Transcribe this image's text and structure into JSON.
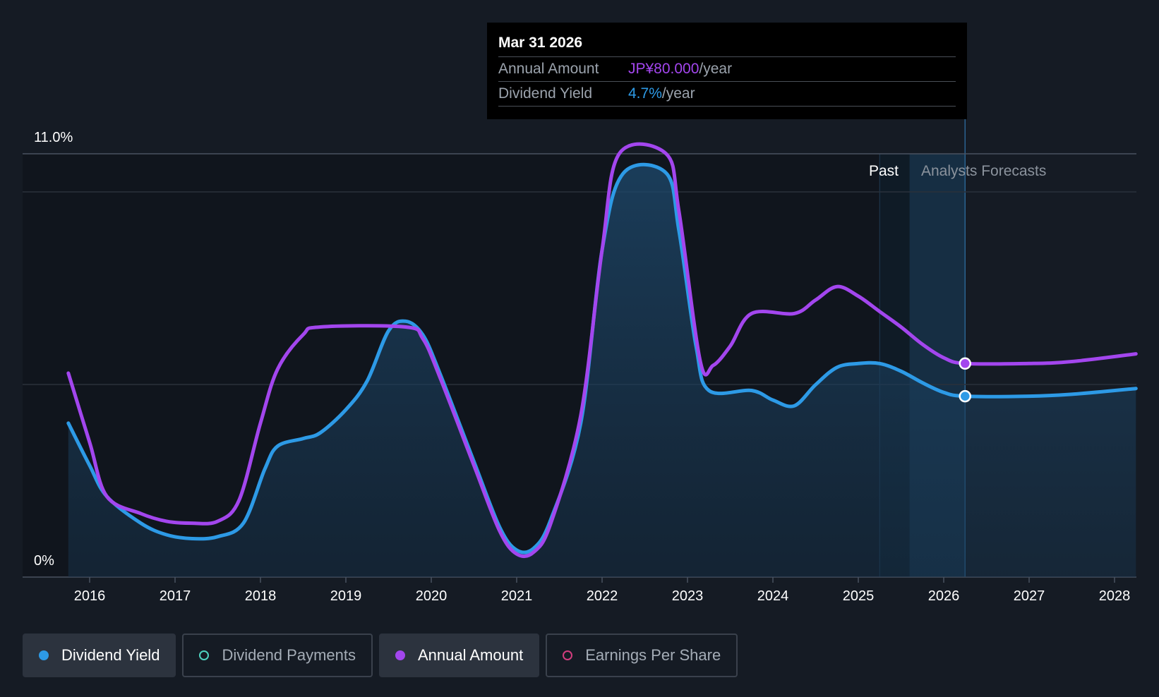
{
  "chart_data": {
    "type": "line",
    "y_axis_labels": {
      "top": "11.0%",
      "bottom": "0%"
    },
    "ylim": [
      0,
      11
    ],
    "x_tick_labels": [
      "2016",
      "2017",
      "2018",
      "2019",
      "2020",
      "2021",
      "2022",
      "2023",
      "2024",
      "2025",
      "2026",
      "2027",
      "2028"
    ],
    "regions": {
      "past": "Past",
      "forecast": "Analysts Forecasts"
    },
    "series": [
      {
        "name": "Dividend Yield",
        "unit": "%",
        "color": "#2d9ae6",
        "filled": true,
        "points": [
          [
            2015.75,
            4.0
          ],
          [
            2016.0,
            2.9
          ],
          [
            2016.2,
            2.1
          ],
          [
            2016.6,
            1.4
          ],
          [
            2016.9,
            1.1
          ],
          [
            2017.2,
            1.0
          ],
          [
            2017.5,
            1.05
          ],
          [
            2017.8,
            1.4
          ],
          [
            2018.05,
            2.8
          ],
          [
            2018.2,
            3.4
          ],
          [
            2018.5,
            3.6
          ],
          [
            2018.7,
            3.75
          ],
          [
            2019.0,
            4.35
          ],
          [
            2019.25,
            5.1
          ],
          [
            2019.5,
            6.4
          ],
          [
            2019.7,
            6.65
          ],
          [
            2019.9,
            6.3
          ],
          [
            2020.1,
            5.3
          ],
          [
            2020.5,
            3.0
          ],
          [
            2020.8,
            1.3
          ],
          [
            2021.0,
            0.7
          ],
          [
            2021.2,
            0.75
          ],
          [
            2021.4,
            1.5
          ],
          [
            2021.75,
            4.0
          ],
          [
            2022.0,
            8.5
          ],
          [
            2022.25,
            10.5
          ],
          [
            2022.75,
            10.5
          ],
          [
            2022.9,
            9.0
          ],
          [
            2023.1,
            6.0
          ],
          [
            2023.25,
            4.85
          ],
          [
            2023.75,
            4.85
          ],
          [
            2024.0,
            4.6
          ],
          [
            2024.25,
            4.45
          ],
          [
            2024.5,
            5.0
          ],
          [
            2024.75,
            5.45
          ],
          [
            2025.0,
            5.55
          ],
          [
            2025.25,
            5.55
          ],
          [
            2025.5,
            5.35
          ],
          [
            2025.75,
            5.05
          ],
          [
            2026.0,
            4.8
          ],
          [
            2026.25,
            4.7
          ],
          [
            2027.0,
            4.7
          ],
          [
            2027.5,
            4.75
          ],
          [
            2028.25,
            4.9
          ]
        ]
      },
      {
        "name": "Annual Amount",
        "unit": "JP¥",
        "color": "#a346ee",
        "filled": false,
        "points": [
          [
            2015.75,
            5.3
          ],
          [
            2016.0,
            3.5
          ],
          [
            2016.2,
            2.1
          ],
          [
            2016.6,
            1.65
          ],
          [
            2016.9,
            1.45
          ],
          [
            2017.2,
            1.4
          ],
          [
            2017.5,
            1.45
          ],
          [
            2017.75,
            2.0
          ],
          [
            2018.0,
            4.0
          ],
          [
            2018.2,
            5.4
          ],
          [
            2018.5,
            6.3
          ],
          [
            2018.7,
            6.5
          ],
          [
            2019.7,
            6.5
          ],
          [
            2019.9,
            6.2
          ],
          [
            2020.1,
            5.2
          ],
          [
            2020.5,
            2.9
          ],
          [
            2020.8,
            1.2
          ],
          [
            2021.0,
            0.6
          ],
          [
            2021.2,
            0.65
          ],
          [
            2021.4,
            1.4
          ],
          [
            2021.75,
            4.2
          ],
          [
            2022.0,
            8.5
          ],
          [
            2022.2,
            11.0
          ],
          [
            2022.75,
            11.0
          ],
          [
            2022.9,
            9.5
          ],
          [
            2023.15,
            5.6
          ],
          [
            2023.3,
            5.5
          ],
          [
            2023.5,
            6.0
          ],
          [
            2023.75,
            6.85
          ],
          [
            2024.25,
            6.85
          ],
          [
            2024.5,
            7.2
          ],
          [
            2024.75,
            7.55
          ],
          [
            2025.0,
            7.3
          ],
          [
            2025.25,
            6.9
          ],
          [
            2025.5,
            6.5
          ],
          [
            2025.75,
            6.05
          ],
          [
            2026.0,
            5.7
          ],
          [
            2026.25,
            5.55
          ],
          [
            2027.0,
            5.55
          ],
          [
            2027.5,
            5.6
          ],
          [
            2028.25,
            5.8
          ]
        ]
      }
    ],
    "tooltip": {
      "date": "Mar 31 2026",
      "annual_amount_label": "Annual Amount",
      "annual_amount_value": "JP¥80.000",
      "annual_amount_unit": "/year",
      "dividend_yield_label": "Dividend Yield",
      "dividend_yield_value": "4.7%",
      "dividend_yield_unit": "/year"
    },
    "legend": [
      {
        "label": "Dividend Yield",
        "active": true,
        "color": "#2d9ae6",
        "hollow": false
      },
      {
        "label": "Dividend Payments",
        "active": false,
        "color": "#4ed2c0",
        "hollow": true
      },
      {
        "label": "Annual Amount",
        "active": true,
        "color": "#a346ee",
        "hollow": false
      },
      {
        "label": "Earnings Per Share",
        "active": false,
        "color": "#d23d7e",
        "hollow": true
      }
    ],
    "highlight_x": 2026.25,
    "past_end_x": 2025.25,
    "forecast_start_x": 2025.6
  }
}
